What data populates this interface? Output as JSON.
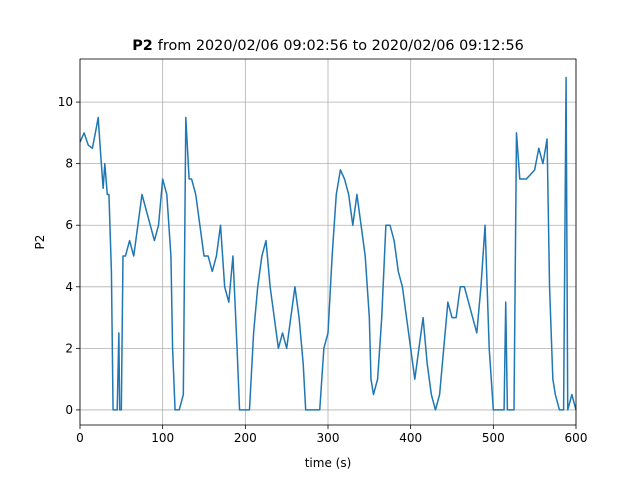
{
  "chart_data": {
    "type": "line",
    "title_bold": "P2",
    "title_rest": "from 2020/02/06 09:02:56 to 2020/02/06 09:12:56",
    "xlabel": "time (s)",
    "ylabel": "P2",
    "xlim": [
      0,
      600
    ],
    "ylim": [
      -0.49,
      11.4
    ],
    "xticks": [
      0,
      100,
      200,
      300,
      400,
      500,
      600
    ],
    "yticks": [
      0,
      2,
      4,
      6,
      8,
      10
    ],
    "grid": true,
    "x": [
      0,
      5,
      10,
      15,
      20,
      22,
      25,
      28,
      30,
      33,
      35,
      38,
      40,
      45,
      47,
      48,
      50,
      52,
      55,
      60,
      65,
      70,
      75,
      80,
      85,
      90,
      95,
      100,
      105,
      110,
      112,
      115,
      120,
      125,
      128,
      132,
      135,
      140,
      145,
      150,
      155,
      160,
      165,
      170,
      175,
      180,
      185,
      190,
      193,
      200,
      205,
      210,
      215,
      220,
      225,
      230,
      235,
      240,
      245,
      250,
      255,
      260,
      265,
      270,
      273,
      280,
      290,
      295,
      300,
      305,
      310,
      315,
      320,
      325,
      330,
      335,
      340,
      345,
      350,
      352,
      355,
      360,
      365,
      370,
      375,
      380,
      385,
      390,
      395,
      400,
      405,
      410,
      415,
      420,
      425,
      430,
      435,
      440,
      445,
      450,
      455,
      460,
      465,
      470,
      475,
      480,
      485,
      490,
      495,
      500,
      505,
      510,
      513,
      515,
      517,
      520,
      525,
      528,
      532,
      540,
      550,
      555,
      560,
      565,
      568,
      572,
      575,
      580,
      585,
      588,
      590,
      595,
      600
    ],
    "series": [
      {
        "name": "P2",
        "color": "#1f77b4",
        "values": [
          8.7,
          9.0,
          8.6,
          8.5,
          9.2,
          9.5,
          8.3,
          7.2,
          8.0,
          7.0,
          7.0,
          4.5,
          0,
          0,
          2.5,
          0,
          0,
          5.0,
          5.0,
          5.5,
          5.0,
          6.0,
          7.0,
          6.5,
          6.0,
          5.5,
          6.0,
          7.5,
          7.0,
          5.0,
          2.0,
          0,
          0,
          0.5,
          9.5,
          7.5,
          7.5,
          7.0,
          6.0,
          5.0,
          5.0,
          4.5,
          5.0,
          6.0,
          4.0,
          3.5,
          5.0,
          2.0,
          0,
          0,
          0,
          2.5,
          4.0,
          5.0,
          5.5,
          4.0,
          3.0,
          2.0,
          2.5,
          2.0,
          3.0,
          4.0,
          3.0,
          1.5,
          0,
          0,
          0,
          2.0,
          2.5,
          5.0,
          7.0,
          7.8,
          7.5,
          7.0,
          6.0,
          7.0,
          6.0,
          5.0,
          3.0,
          1.0,
          0.5,
          1.0,
          3.0,
          6.0,
          6.0,
          5.5,
          4.5,
          4.0,
          3.0,
          2.0,
          1.0,
          2.0,
          3.0,
          1.5,
          0.5,
          0,
          0.5,
          2.0,
          3.5,
          3.0,
          3.0,
          4.0,
          4.0,
          3.5,
          3.0,
          2.5,
          4.0,
          6.0,
          2.0,
          0,
          0,
          0,
          0,
          3.5,
          0,
          0,
          0,
          9.0,
          7.5,
          7.5,
          7.8,
          8.5,
          8.0,
          8.8,
          4.0,
          1.0,
          0.5,
          0,
          0,
          10.8,
          0,
          0.5,
          0
        ]
      }
    ]
  }
}
